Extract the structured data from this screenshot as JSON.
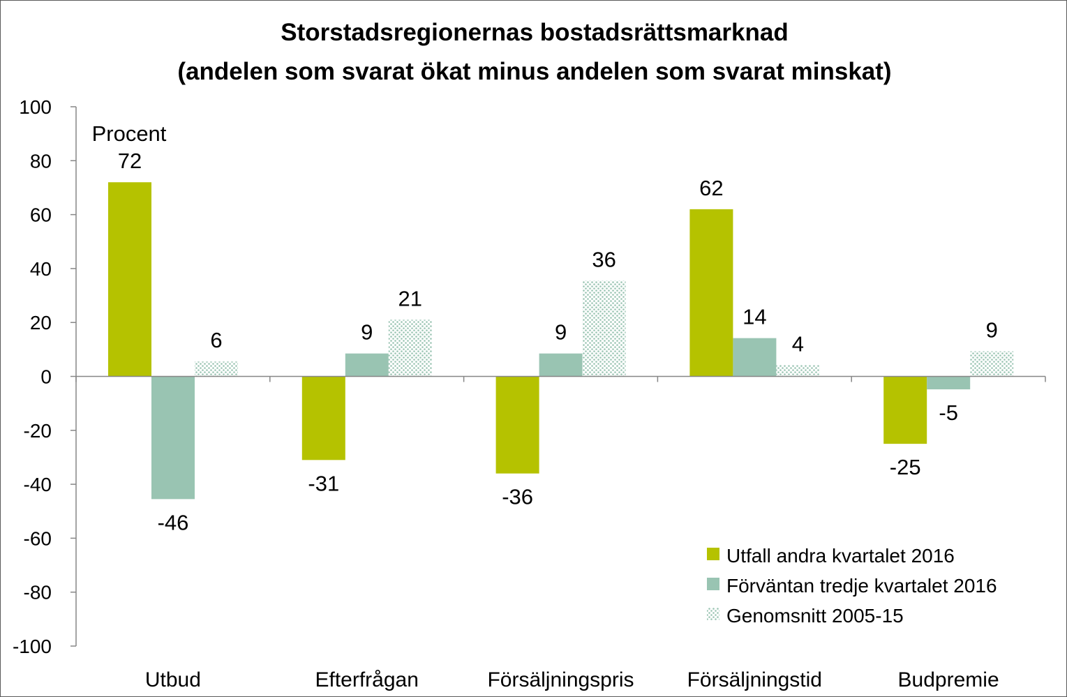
{
  "chart_data": {
    "type": "bar",
    "title_lines": [
      "Storstadsregionernas bostadsrättsmarknad",
      "(andelen som svarat ökat minus andelen som svarat minskat)"
    ],
    "unit_label": "Procent",
    "categories": [
      "Utbud",
      "Efterfrågan",
      "Försäljningspris",
      "Försäljningstid",
      "Budpremie"
    ],
    "series": [
      {
        "name": "Utfall andra kvartalet 2016",
        "values": [
          72,
          -31,
          -36,
          62,
          -25
        ],
        "color": "#b5c200",
        "pattern": "solid"
      },
      {
        "name": "Förväntan tredje kvartalet 2016",
        "values": [
          -46,
          9,
          9,
          14,
          -5
        ],
        "color": "#99c4b2",
        "pattern": "solid"
      },
      {
        "name": "Genomsnitt 2005-15",
        "values": [
          6,
          21,
          36,
          4,
          9
        ],
        "color": "#99c4b2",
        "pattern": "dotted"
      }
    ],
    "data_labels": [
      [
        "72",
        "-31",
        "-36",
        "62",
        "-25"
      ],
      [
        "-46",
        "9",
        "9",
        "14",
        "-5"
      ],
      [
        "6",
        "21",
        "36",
        "4",
        "9"
      ]
    ],
    "plotted_values": [
      [
        72,
        -31,
        -36,
        62,
        -25
      ],
      [
        -45.5,
        8.5,
        8.5,
        14.2,
        -4.8
      ],
      [
        5.5,
        21,
        35.5,
        4.2,
        9.3
      ]
    ],
    "ylim": [
      -100,
      100
    ],
    "yticks": [
      "100",
      "80",
      "60",
      "40",
      "20",
      "0",
      "-20",
      "-40",
      "-60",
      "-80",
      "-100"
    ],
    "ytick_values": [
      100,
      80,
      60,
      40,
      20,
      0,
      -20,
      -40,
      -60,
      -80,
      -100
    ],
    "grid": false,
    "legend_position": "bottom-right"
  }
}
